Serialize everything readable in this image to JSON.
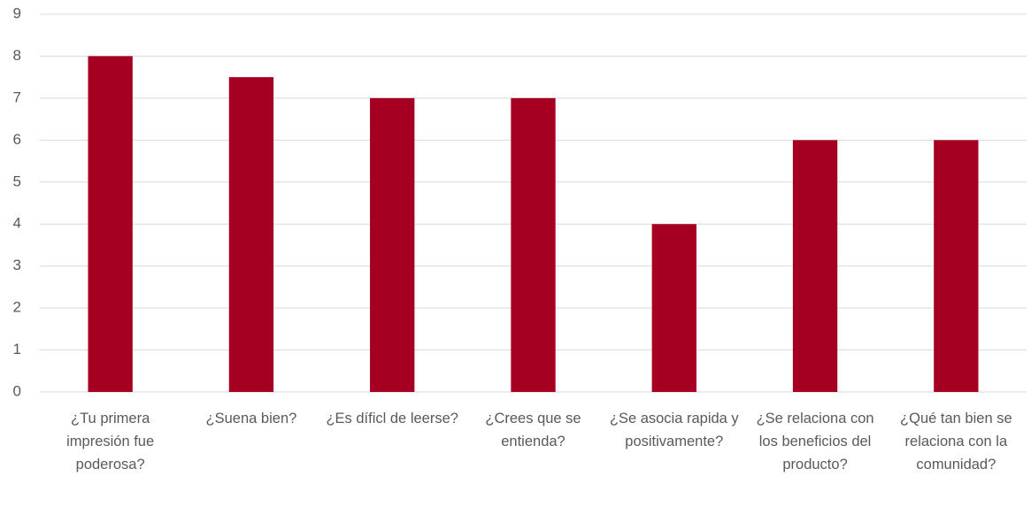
{
  "chart_data": {
    "type": "bar",
    "categories": [
      "¿Tu primera impresión fue poderosa?",
      "¿Suena bien?",
      "¿Es díficl de leerse?",
      "¿Crees que se entienda?",
      "¿Se asocia rapida y positivamente?",
      "¿Se relaciona con los beneficios del producto?",
      "¿Qué tan bien se relaciona con la comunidad?"
    ],
    "values": [
      8,
      7.5,
      7,
      7,
      4,
      6,
      6
    ],
    "color": "#a50021",
    "ylim": [
      0,
      9
    ],
    "yticks": [
      0,
      1,
      2,
      3,
      4,
      5,
      6,
      7,
      8,
      9
    ],
    "grid": true
  }
}
